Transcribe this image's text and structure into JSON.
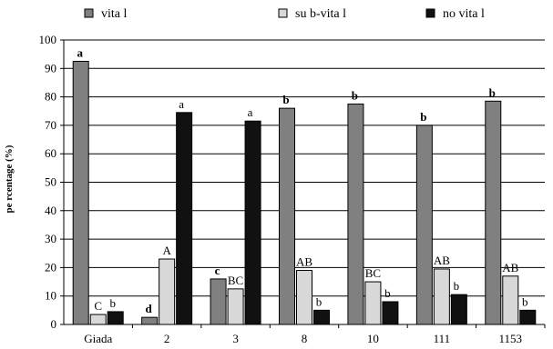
{
  "chart_data": {
    "type": "bar",
    "title": "",
    "xlabel": "",
    "ylabel": "pe rcentage  (%)",
    "ylim": [
      0,
      100
    ],
    "yticks": [
      0,
      10,
      20,
      30,
      40,
      50,
      60,
      70,
      80,
      90,
      100
    ],
    "grid": true,
    "legend_position": "top",
    "categories": [
      "Giada",
      "2",
      "3",
      "8",
      "10",
      "111",
      "1153"
    ],
    "series": [
      {
        "name": "vita l",
        "color": "#808080",
        "values": [
          92.5,
          2.5,
          16,
          76,
          77.5,
          70,
          78.5
        ],
        "labels": [
          "a",
          "d",
          "c",
          "b",
          "b",
          "b",
          "b"
        ],
        "labels_bold": true
      },
      {
        "name": "su b-vita l",
        "color": "#d8d8d8",
        "values": [
          3.5,
          23,
          12.5,
          19,
          15,
          19.5,
          17
        ],
        "labels": [
          "C",
          "A",
          "BC",
          "AB",
          "BC",
          "AB",
          "AB"
        ],
        "labels_bold": false
      },
      {
        "name": "no vita l",
        "color": "#111111",
        "values": [
          4.5,
          74.5,
          71.5,
          5,
          8,
          10.5,
          5
        ],
        "labels": [
          "b",
          "a",
          "a",
          "b",
          "b",
          "b",
          "b"
        ],
        "labels_bold": false
      }
    ]
  }
}
